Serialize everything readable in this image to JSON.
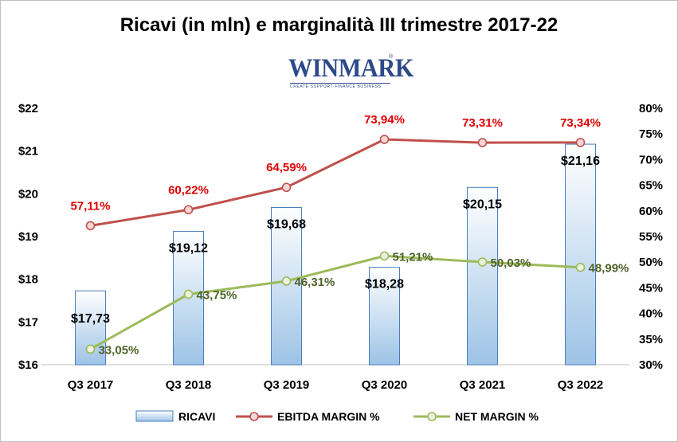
{
  "title": "Ricavi (in mln) e marginalità  III trimestre 2017-22",
  "logo": {
    "word": "WINMARK",
    "reg": "®",
    "tagline": "CREATE·SUPPORT·FINANCE BUSINESS"
  },
  "colors": {
    "bar_fill": "#c5d9f1",
    "bar_stroke": "#4a7ebb",
    "ebitda": "#c0504d",
    "net": "#9bbb59",
    "ebitda_label": "#e00000",
    "net_label": "#4f6228"
  },
  "chart_data": {
    "type": "bar",
    "categories": [
      "Q3 2017",
      "Q3 2018",
      "Q3 2019",
      "Q3 2020",
      "Q3 2021",
      "Q3 2022"
    ],
    "series": [
      {
        "name": "RICAVI",
        "type": "bar",
        "axis": "left",
        "values": [
          17.73,
          19.12,
          19.68,
          18.28,
          20.15,
          21.16
        ],
        "labels": [
          "$17,73",
          "$19,12",
          "$19,68",
          "$18,28",
          "$20,15",
          "$21,16"
        ]
      },
      {
        "name": "EBITDA MARGIN %",
        "type": "line",
        "axis": "right",
        "values": [
          57.11,
          60.22,
          64.59,
          73.94,
          73.31,
          73.34
        ],
        "labels": [
          "57,11%",
          "60,22%",
          "64,59%",
          "73,94%",
          "73,31%",
          "73,34%"
        ]
      },
      {
        "name": "NET MARGIN %",
        "type": "line",
        "axis": "right",
        "values": [
          33.05,
          43.75,
          46.31,
          51.21,
          50.03,
          48.99
        ],
        "labels": [
          "33,05%",
          "43,75%",
          "46,31%",
          "51,21%",
          "50,03%",
          "48,99%"
        ]
      }
    ],
    "y_left": {
      "min": 16,
      "max": 22,
      "ticks": [
        "$16",
        "$17",
        "$18",
        "$19",
        "$20",
        "$21",
        "$22"
      ]
    },
    "y_right": {
      "min": 30,
      "max": 80,
      "ticks": [
        "30%",
        "35%",
        "40%",
        "45%",
        "50%",
        "55%",
        "60%",
        "65%",
        "70%",
        "75%",
        "80%"
      ]
    },
    "legend": {
      "position": "bottom",
      "items": [
        "RICAVI",
        "EBITDA MARGIN %",
        "NET MARGIN %"
      ]
    },
    "grid": false
  }
}
